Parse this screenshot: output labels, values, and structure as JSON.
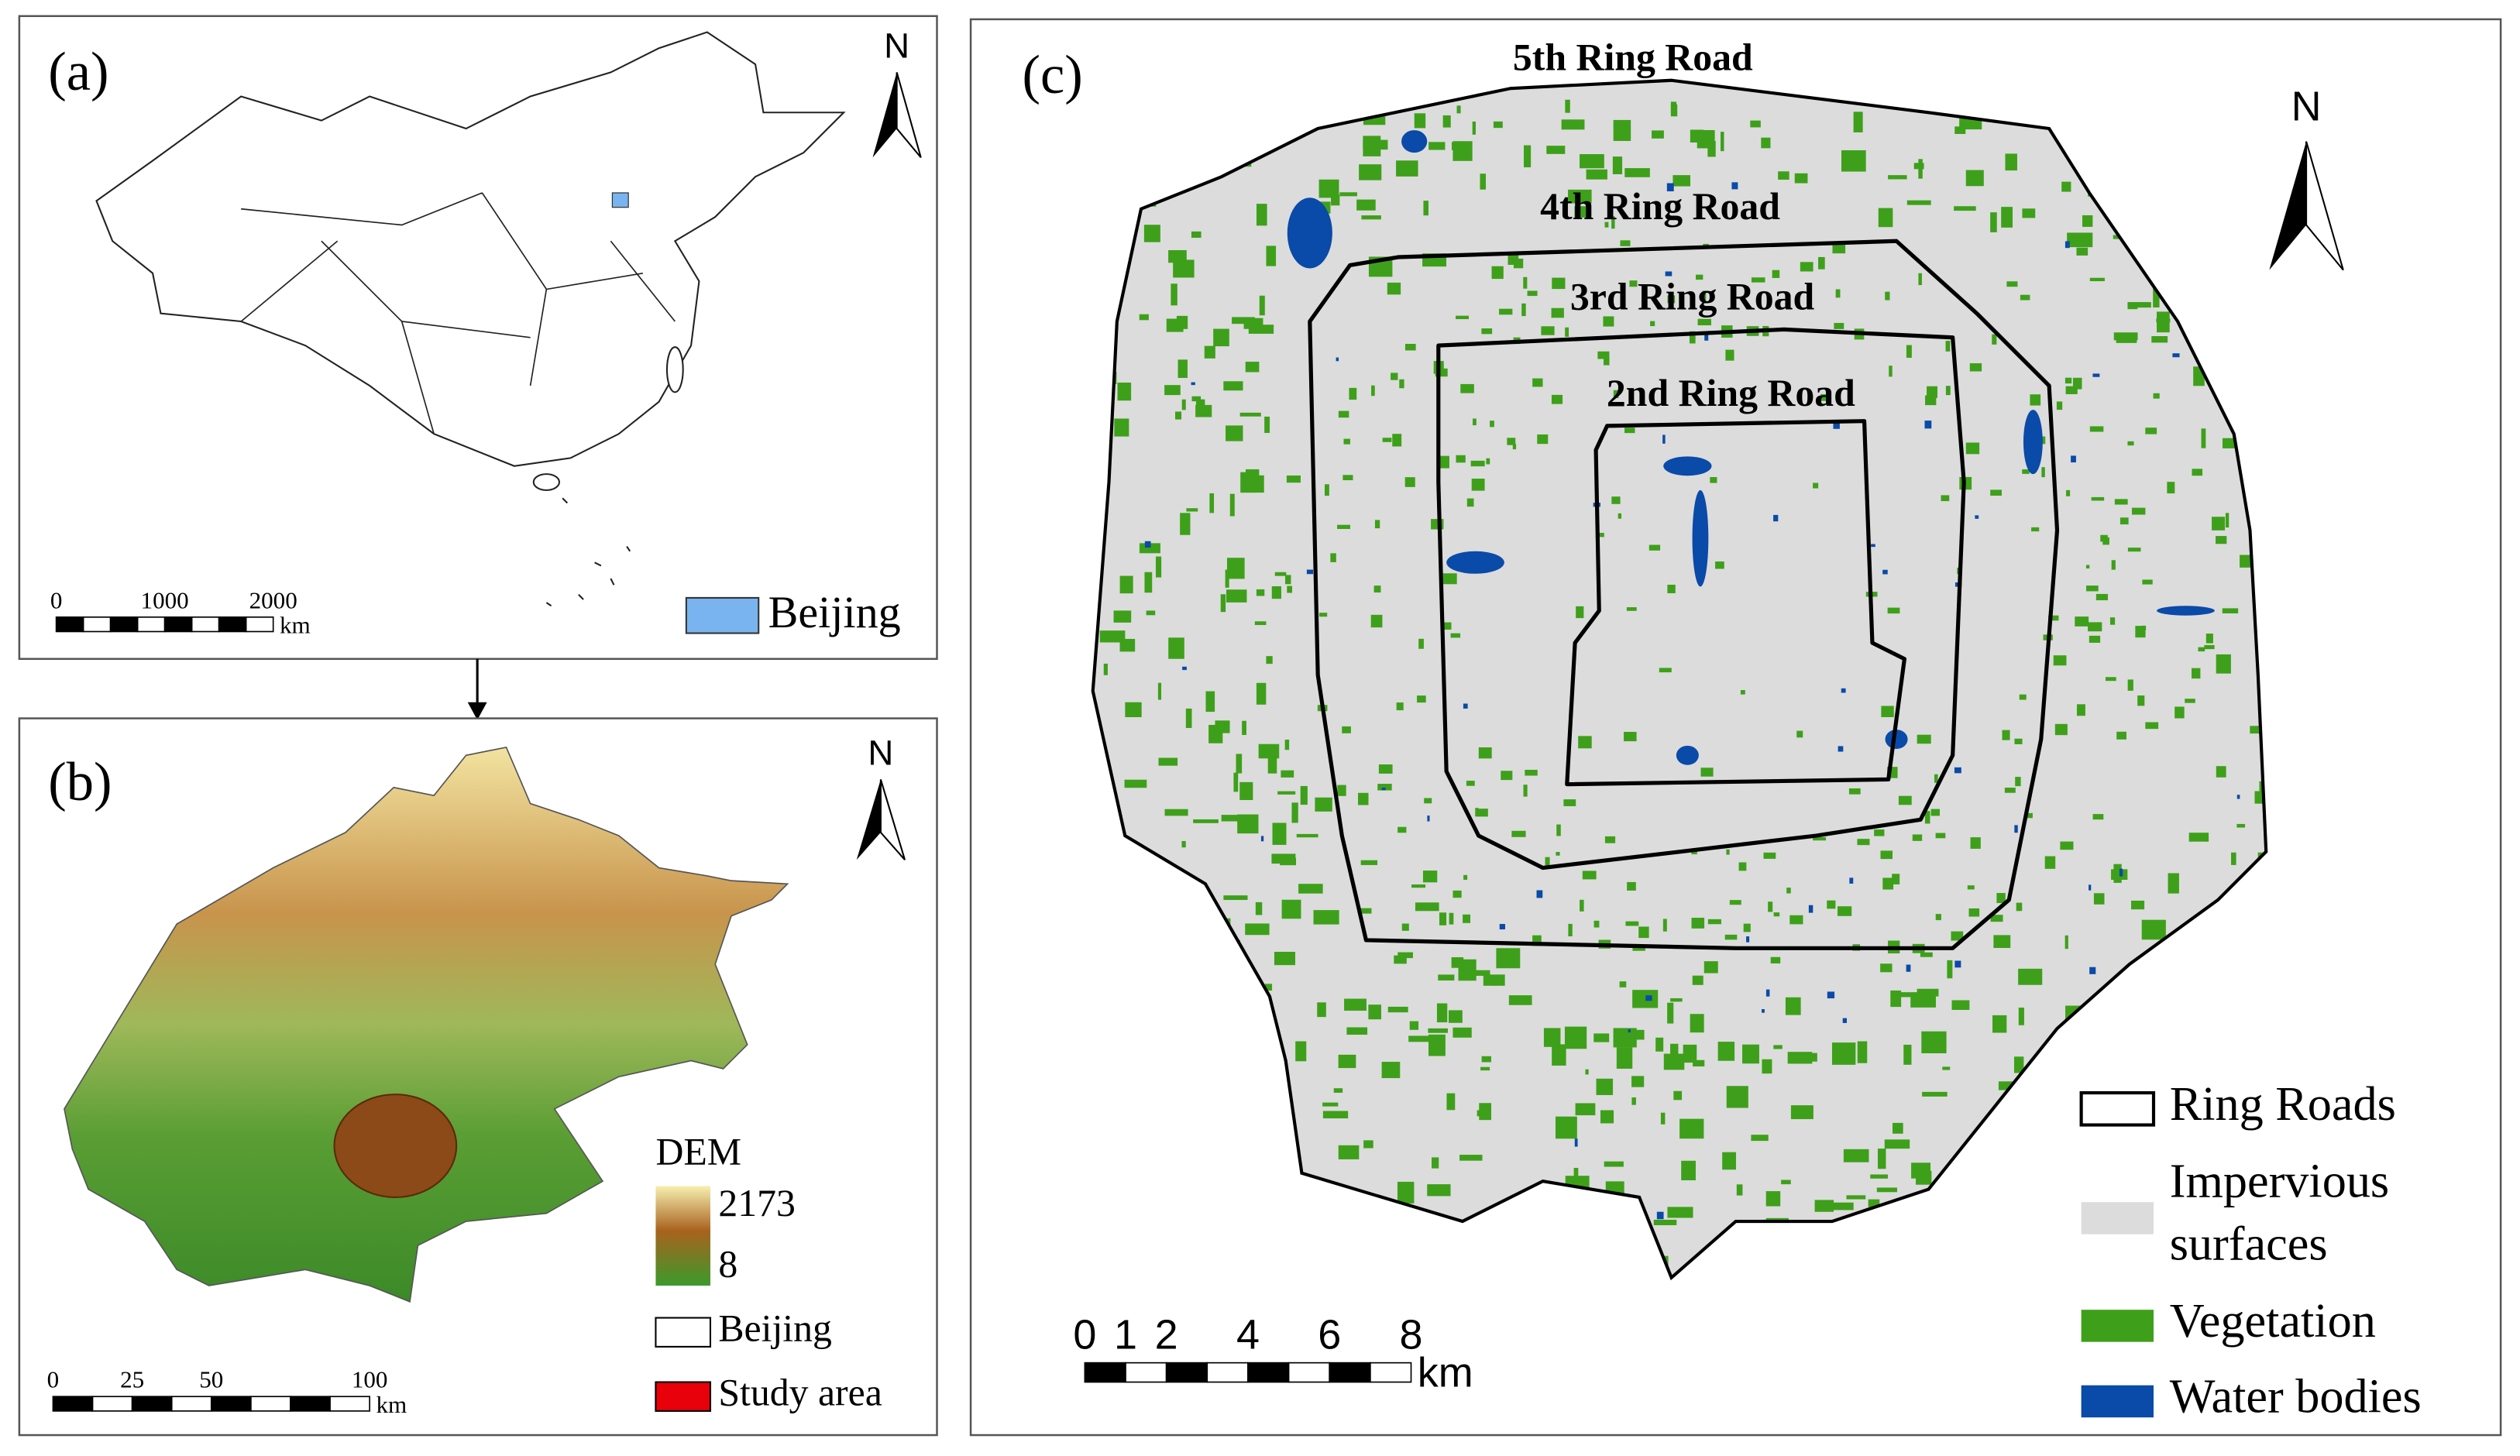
{
  "panel_a": {
    "label": "(a)",
    "north": "N",
    "scale_bar": {
      "ticks": [
        0,
        1000,
        2000
      ],
      "unit": "km"
    },
    "legend": {
      "beijing": "Beijing"
    }
  },
  "panel_b": {
    "label": "(b)",
    "north": "N",
    "legend": {
      "title": "DEM",
      "max": 2173,
      "min": 8,
      "beijing": "Beijing",
      "study_area": "Study area"
    },
    "scale_bar": {
      "ticks": [
        0,
        25,
        50,
        100
      ],
      "unit": "km"
    }
  },
  "panel_c": {
    "label": "(c)",
    "north": "N",
    "ring_roads": [
      "5th Ring Road",
      "4th Ring Road",
      "3rd Ring Road",
      "2nd Ring Road"
    ],
    "legend": {
      "ring_roads": "Ring Roads",
      "impervious_1": "Impervious",
      "impervious_2": "surfaces",
      "vegetation": "Vegetation",
      "water": "Water bodies"
    },
    "scale_bar": {
      "ticks": [
        0,
        1,
        2,
        4,
        6,
        8
      ],
      "unit": "km"
    }
  }
}
